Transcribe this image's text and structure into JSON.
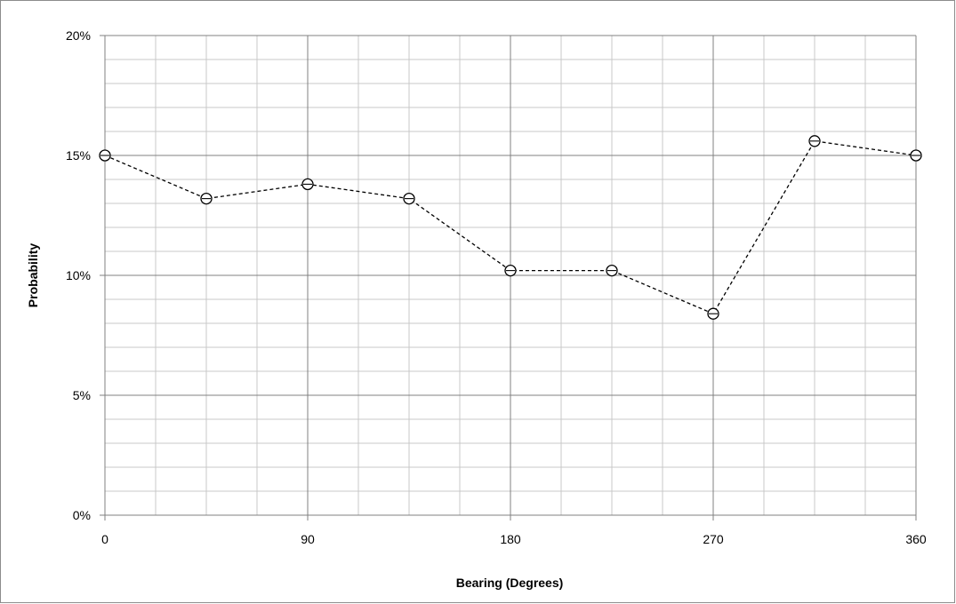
{
  "chart_data": {
    "type": "line",
    "title": "",
    "xlabel": "Bearing (Degrees)",
    "ylabel": "Probability",
    "xlim": [
      0,
      360
    ],
    "ylim": [
      0,
      0.2
    ],
    "x_ticks": [
      0,
      90,
      180,
      270,
      360
    ],
    "x_tick_labels": [
      "0",
      "90",
      "180",
      "270",
      "360"
    ],
    "y_ticks": [
      0,
      0.05,
      0.1,
      0.15,
      0.2
    ],
    "y_tick_labels": [
      "0%",
      "5%",
      "10%",
      "15%",
      "20%"
    ],
    "x_minor_step": 22.5,
    "y_minor_step": 0.01,
    "grid": true,
    "legend": "none",
    "line_style": "dashed",
    "marker": "open-circle",
    "colors": {
      "line": "#000000",
      "major_grid": "#808080",
      "minor_grid": "#c8c8c8"
    },
    "series": [
      {
        "x": [
          0,
          45,
          90,
          135,
          180,
          225,
          270,
          315,
          360
        ],
        "values": [
          0.15,
          0.132,
          0.138,
          0.132,
          0.102,
          0.102,
          0.084,
          0.156,
          0.15
        ]
      }
    ]
  }
}
